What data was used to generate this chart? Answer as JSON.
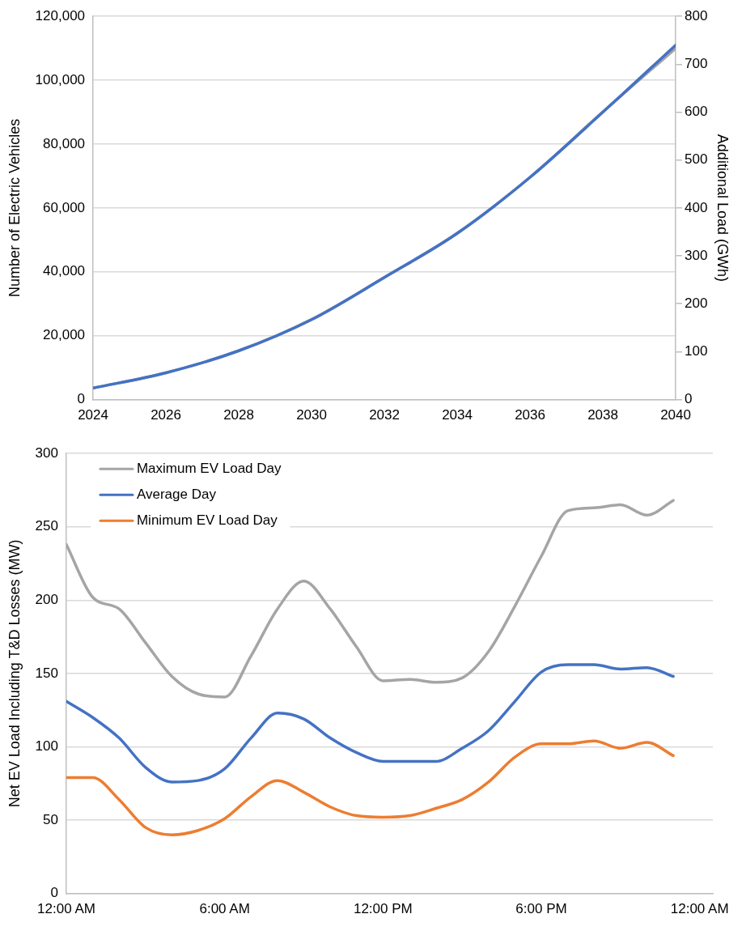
{
  "chart_data": [
    {
      "type": "line",
      "ylabel": "Number of Electric Vehicles",
      "y2label": "Additional Load (GWh)",
      "x": [
        2024,
        2026,
        2028,
        2030,
        2032,
        2034,
        2036,
        2038,
        2040
      ],
      "xlim": [
        2024,
        2040
      ],
      "xticks": [
        2024,
        2026,
        2028,
        2030,
        2032,
        2034,
        2036,
        2038,
        2040
      ],
      "ylim": [
        0,
        120000
      ],
      "yticks": [
        {
          "value": 0,
          "label": "0"
        },
        {
          "value": 20000,
          "label": "20,000"
        },
        {
          "value": 40000,
          "label": "40,000"
        },
        {
          "value": 60000,
          "label": "60,000"
        },
        {
          "value": 80000,
          "label": "80,000"
        },
        {
          "value": 100000,
          "label": "100,000"
        },
        {
          "value": 120000,
          "label": "120,000"
        }
      ],
      "y2lim": [
        0,
        800
      ],
      "y2ticks": [
        0,
        100,
        200,
        300,
        400,
        500,
        600,
        700,
        800
      ],
      "series": [
        {
          "color": "#a5a5a5",
          "values": [
            3600,
            8400,
            15300,
            25100,
            38300,
            52100,
            69600,
            90100,
            110000
          ]
        },
        {
          "color": "#4472c4",
          "axis": "y2",
          "values": [
            24,
            56,
            102,
            167,
            255,
            347,
            464,
            600,
            740
          ]
        }
      ],
      "grid": "y",
      "legend": false,
      "marker": "none",
      "line_style": "solid"
    },
    {
      "type": "line",
      "ylabel": "Net EV Load Including T&D Losses (MW)",
      "x": [
        0,
        1,
        2,
        3,
        4,
        5,
        6,
        7,
        8,
        9,
        10,
        11,
        12,
        13,
        14,
        15,
        16,
        17,
        18,
        19,
        20,
        21,
        22,
        23
      ],
      "xlim": [
        0,
        24.5
      ],
      "xticks": [
        {
          "value": 0,
          "label": "12:00 AM"
        },
        {
          "value": 6,
          "label": "6:00 AM"
        },
        {
          "value": 12,
          "label": "12:00 PM"
        },
        {
          "value": 18,
          "label": "6:00 PM"
        },
        {
          "value": 24,
          "label": "12:00 AM"
        }
      ],
      "ylim": [
        0,
        300
      ],
      "yticks": [
        0,
        50,
        100,
        150,
        200,
        250,
        300
      ],
      "series": [
        {
          "name": "Maximum EV Load Day",
          "color": "#a5a5a5",
          "values": [
            238,
            202,
            194,
            171,
            148,
            136,
            134,
            162,
            194,
            213,
            194,
            168,
            145,
            146,
            144,
            147,
            165,
            196,
            230,
            261,
            263,
            265,
            258,
            268
          ]
        },
        {
          "name": "Average Day",
          "color": "#4472c4",
          "values": [
            131,
            120,
            106,
            86,
            76,
            77,
            85,
            106,
            123,
            119,
            106,
            96,
            90,
            90,
            90,
            99,
            111,
            131,
            151,
            156,
            156,
            153,
            154,
            148
          ]
        },
        {
          "name": "Minimum EV Load Day",
          "color": "#ed7d31",
          "values": [
            79,
            79,
            64,
            45,
            40,
            43,
            51,
            66,
            77,
            69,
            59,
            53,
            52,
            53,
            58,
            64,
            76,
            93,
            102,
            102,
            104,
            99,
            103,
            94
          ]
        }
      ],
      "grid": "y",
      "legend": "top left",
      "marker": "none",
      "line_style": "solid"
    }
  ]
}
